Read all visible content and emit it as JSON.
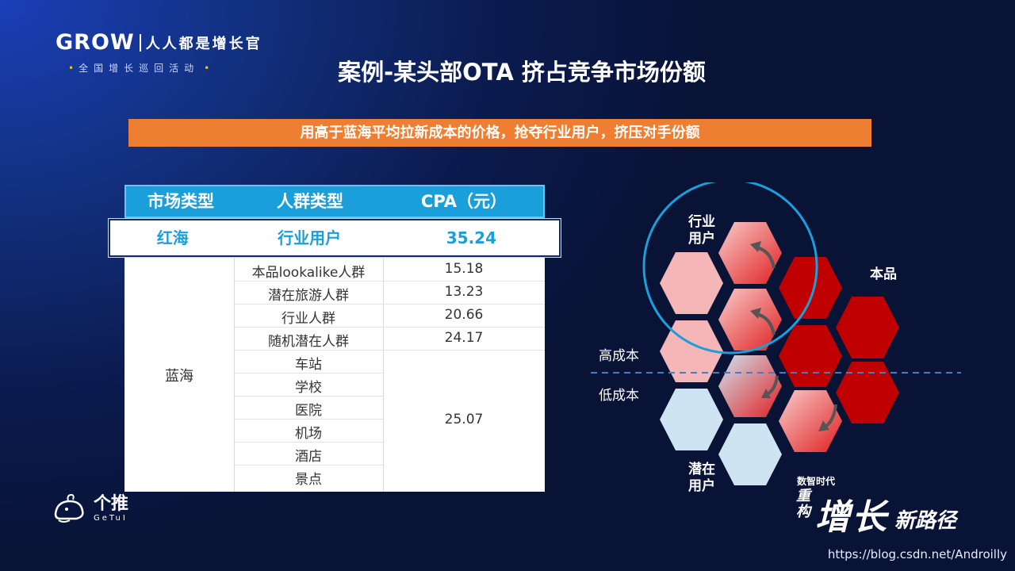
{
  "logo": {
    "brand": "GROW",
    "slogan": "人人都是增长官",
    "sub": "全国增长巡回活动"
  },
  "title": "案例-某头部OTA 挤占竞争市场份额",
  "banner": "用高于蓝海平均拉新成本的价格，抢夺行业用户，挤压对手份额",
  "table": {
    "headers": [
      "市场类型",
      "人群类型",
      "CPA（元）"
    ],
    "red_row": {
      "market": "红海",
      "crowd": "行业用户",
      "cpa": "35.24"
    },
    "blue_market": "蓝海",
    "blue_rows": [
      {
        "crowd": "本品lookalike人群",
        "cpa": "15.18"
      },
      {
        "crowd": "潜在旅游人群",
        "cpa": "13.23"
      },
      {
        "crowd": "行业人群",
        "cpa": "20.66"
      },
      {
        "crowd": "随机潜在人群",
        "cpa": "24.17"
      },
      {
        "crowd": "车站"
      },
      {
        "crowd": "学校"
      },
      {
        "crowd": "医院"
      },
      {
        "crowd": "机场"
      },
      {
        "crowd": "酒店"
      },
      {
        "crowd": "景点"
      }
    ],
    "merged_cpa": "25.07"
  },
  "diagram": {
    "label_industry": [
      "行业",
      "用户"
    ],
    "label_own": "本品",
    "label_potential": [
      "潜在",
      "用户"
    ],
    "high_cost": "高成本",
    "low_cost": "低成本",
    "colors": {
      "circle": "#1b9fdb",
      "own": "#c00000",
      "industry": "#f4b6b6",
      "potential": "#cfe4f3",
      "dash": "#4a7bbf"
    }
  },
  "getui": {
    "cn": "个推",
    "en": "GeTuI"
  },
  "event": {
    "small": "数智时代",
    "vertical": "重构",
    "big": "增长",
    "mid": "新路径"
  },
  "watermark": "https://blog.csdn.net/Androilly"
}
